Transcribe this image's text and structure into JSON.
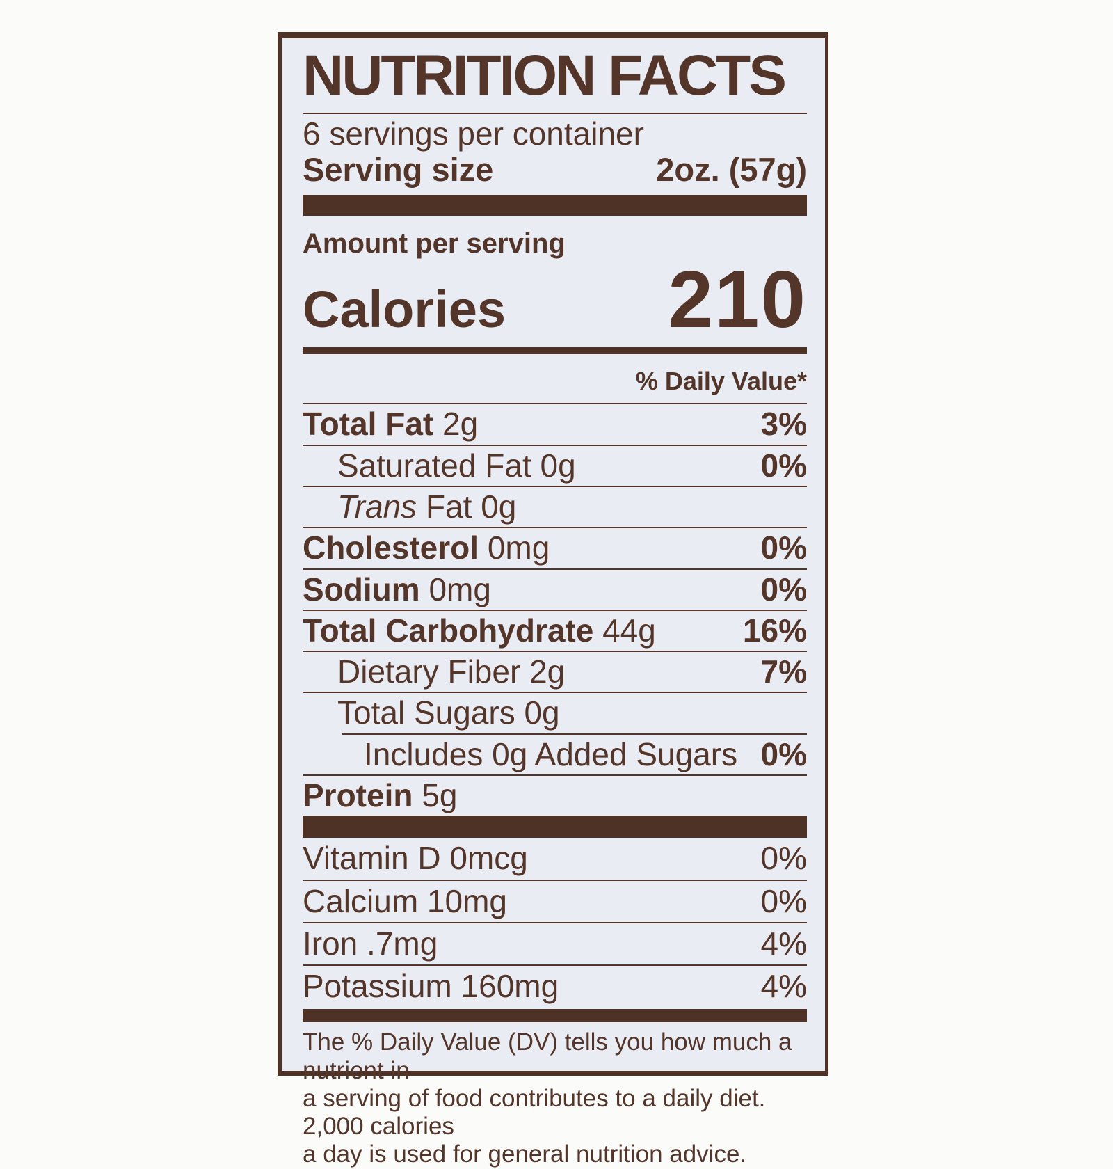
{
  "label": {
    "title": "NUTRITION FACTS",
    "servings_per_container": "6 servings per container",
    "serving_size_label": "Serving size",
    "serving_size_value": "2oz. (57g)",
    "amount_per_serving": "Amount per serving",
    "calories_label": "Calories",
    "calories_value": "210",
    "daily_value_header": "% Daily Value*",
    "nutrients": [
      {
        "bold": "Total Fat",
        "text": " 2g",
        "dv": "3%"
      },
      {
        "bold": "",
        "text": "Saturated Fat 0g",
        "dv": "0%"
      },
      {
        "italic": "Trans",
        "text": " Fat 0g",
        "dv": ""
      },
      {
        "bold": "Cholesterol",
        "text": " 0mg",
        "dv": "0%"
      },
      {
        "bold": "Sodium",
        "text": " 0mg",
        "dv": "0%"
      },
      {
        "bold": "Total Carbohydrate",
        "text": " 44g",
        "dv": "16%"
      },
      {
        "bold": "",
        "text": "Dietary Fiber 2g",
        "dv": "7%"
      },
      {
        "bold": "",
        "text": "Total Sugars 0g",
        "dv": ""
      },
      {
        "bold": "",
        "text": "Includes 0g Added Sugars",
        "dv": "0%"
      },
      {
        "bold": "Protein",
        "text": " 5g",
        "dv": ""
      }
    ],
    "micronutrients": [
      {
        "text": "Vitamin D 0mcg",
        "dv": "0%"
      },
      {
        "text": "Calcium 10mg",
        "dv": "0%"
      },
      {
        "text": "Iron .7mg",
        "dv": "4%"
      },
      {
        "text": "Potassium 160mg",
        "dv": "4%"
      }
    ],
    "footnote_lines": [
      "The % Daily Value (DV) tells you how much a nutrient in",
      "a serving of food contributes to a daily diet. 2,000 calories",
      "a day is used for general nutrition advice."
    ]
  },
  "colors": {
    "ink": "#54352a",
    "bar": "#4f3226",
    "label_background": "#e9ecf3",
    "page_background": "#fbfbfa"
  }
}
